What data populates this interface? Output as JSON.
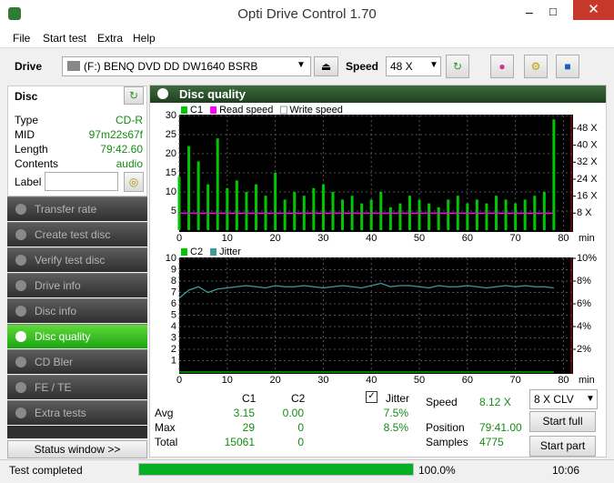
{
  "window": {
    "title": "Opti Drive Control 1.70"
  },
  "menu": [
    "File",
    "Start test",
    "Extra",
    "Help"
  ],
  "toolbar": {
    "drive_label": "Drive",
    "drive": "(F:)  BENQ DVD DD DW1640 BSRB",
    "speed_label": "Speed",
    "speed": "48 X"
  },
  "disc": {
    "title": "Disc",
    "rows": [
      [
        "Type",
        "CD-R"
      ],
      [
        "MID",
        "97m22s67f"
      ],
      [
        "Length",
        "79:42.60"
      ],
      [
        "Contents",
        "audio"
      ]
    ],
    "label": "Label"
  },
  "nav": [
    "Transfer rate",
    "Create test disc",
    "Verify test disc",
    "Drive info",
    "Disc info",
    "Disc quality",
    "CD Bler",
    "FE / TE",
    "Extra tests"
  ],
  "status_window": "Status window >>",
  "panel": {
    "title": "Disc quality"
  },
  "chart_data": [
    {
      "type": "bar",
      "xlabel": "min",
      "grid": true,
      "x": [
        0,
        2,
        4,
        6,
        8,
        10,
        12,
        14,
        16,
        18,
        20,
        22,
        24,
        26,
        28,
        30,
        32,
        34,
        36,
        38,
        40,
        42,
        44,
        46,
        48,
        50,
        52,
        54,
        56,
        58,
        60,
        62,
        64,
        66,
        68,
        70,
        72,
        74,
        76,
        78
      ],
      "xlim": [
        0,
        82
      ],
      "xticks": [
        0,
        10,
        20,
        30,
        40,
        50,
        60,
        70,
        80
      ],
      "ylim": [
        0,
        30
      ],
      "yticks": [
        5,
        10,
        15,
        20,
        25,
        30
      ],
      "y2lim": [
        0,
        54
      ],
      "y2ticks": [
        {
          "value": 8,
          "label": "8 X"
        },
        {
          "value": 16,
          "label": "16 X"
        },
        {
          "value": 24,
          "label": "24 X"
        },
        {
          "value": 32,
          "label": "32 X"
        },
        {
          "value": 40,
          "label": "40 X"
        },
        {
          "value": 48,
          "label": "48 X"
        }
      ],
      "series": [
        {
          "name": "C1",
          "color": "#00c800",
          "values": [
            14,
            22,
            18,
            12,
            24,
            11,
            13,
            10,
            12,
            9,
            15,
            8,
            10,
            9,
            11,
            12,
            10,
            8,
            9,
            7,
            8,
            10,
            6,
            7,
            9,
            8,
            7,
            6,
            8,
            9,
            7,
            8,
            7,
            9,
            8,
            7,
            8,
            9,
            10,
            29
          ]
        },
        {
          "name": "Read speed",
          "color": "#ff00ff",
          "axis": "y2",
          "values": [
            8,
            8,
            8,
            8,
            8,
            8,
            8,
            8,
            8,
            8,
            8,
            8,
            8,
            8,
            8,
            8,
            8,
            8,
            8,
            8,
            8,
            8,
            8,
            8,
            8,
            8,
            8,
            8,
            8,
            8,
            8,
            8,
            8,
            8,
            8,
            8,
            8,
            8,
            8,
            8
          ]
        },
        {
          "name": "Write speed",
          "color": "#ffffff",
          "axis": "y2",
          "values": [
            null,
            null,
            null,
            null,
            null,
            null,
            null,
            null,
            null,
            null,
            null,
            null,
            null,
            null,
            null,
            null,
            null,
            null,
            null,
            null,
            null,
            null,
            null,
            null,
            null,
            null,
            null,
            null,
            null,
            null,
            null,
            null,
            null,
            null,
            null,
            null,
            null,
            null,
            null,
            null
          ]
        }
      ]
    },
    {
      "type": "line",
      "xlabel": "min",
      "grid": true,
      "x": [
        0,
        2,
        4,
        6,
        8,
        10,
        12,
        14,
        16,
        18,
        20,
        22,
        24,
        26,
        28,
        30,
        32,
        34,
        36,
        38,
        40,
        42,
        44,
        46,
        48,
        50,
        52,
        54,
        56,
        58,
        60,
        62,
        64,
        66,
        68,
        70,
        72,
        74,
        76,
        78
      ],
      "xlim": [
        0,
        82
      ],
      "xticks": [
        0,
        10,
        20,
        30,
        40,
        50,
        60,
        70,
        80
      ],
      "ylim": [
        0,
        10
      ],
      "yticks": [
        1,
        2,
        3,
        4,
        5,
        6,
        7,
        8,
        9,
        10
      ],
      "y2lim": [
        0,
        10
      ],
      "y2ticks": [
        {
          "value": 2,
          "label": "2%"
        },
        {
          "value": 4,
          "label": "4%"
        },
        {
          "value": 6,
          "label": "6%"
        },
        {
          "value": 8,
          "label": "8%"
        },
        {
          "value": 10,
          "label": "10%"
        }
      ],
      "series": [
        {
          "name": "C2",
          "color": "#00c800",
          "values": [
            0,
            0,
            0,
            0,
            0,
            0,
            0,
            0,
            0,
            0,
            0,
            0,
            0,
            0,
            0,
            0,
            0,
            0,
            0,
            0,
            0,
            0,
            0,
            0,
            0,
            0,
            0,
            0,
            0,
            0,
            0,
            0,
            0,
            0,
            0,
            0,
            0,
            0,
            0,
            0
          ]
        },
        {
          "name": "Jitter",
          "color": "#3c9c9c",
          "axis": "y2",
          "values": [
            6.5,
            7.2,
            7.5,
            7.0,
            7.3,
            7.4,
            7.5,
            7.6,
            7.5,
            7.4,
            7.6,
            7.5,
            7.5,
            7.6,
            7.5,
            7.4,
            7.5,
            7.6,
            7.5,
            7.4,
            7.6,
            7.8,
            7.5,
            7.6,
            7.6,
            7.5,
            7.4,
            7.6,
            7.5,
            7.5,
            7.6,
            7.5,
            7.4,
            7.5,
            7.6,
            7.5,
            7.6,
            7.5,
            7.5,
            7.4
          ]
        }
      ]
    }
  ],
  "stats": {
    "headers": [
      "C1",
      "C2"
    ],
    "jitter": "Jitter",
    "rows": [
      {
        "label": "Avg",
        "c1": "3.15",
        "c2": "0.00",
        "jitter": "7.5%"
      },
      {
        "label": "Max",
        "c1": "29",
        "c2": "0",
        "jitter": "8.5%"
      },
      {
        "label": "Total",
        "c1": "15061",
        "c2": "0"
      }
    ]
  },
  "info": [
    [
      "Speed",
      "8.12 X"
    ],
    [
      "Position",
      "79:41.00"
    ],
    [
      "Samples",
      "4775"
    ]
  ],
  "controls": {
    "mode": "8 X CLV",
    "start_full": "Start full",
    "start_part": "Start part"
  },
  "statusbar": {
    "message": "Test completed",
    "progress": "100.0%",
    "time": "10:06"
  }
}
